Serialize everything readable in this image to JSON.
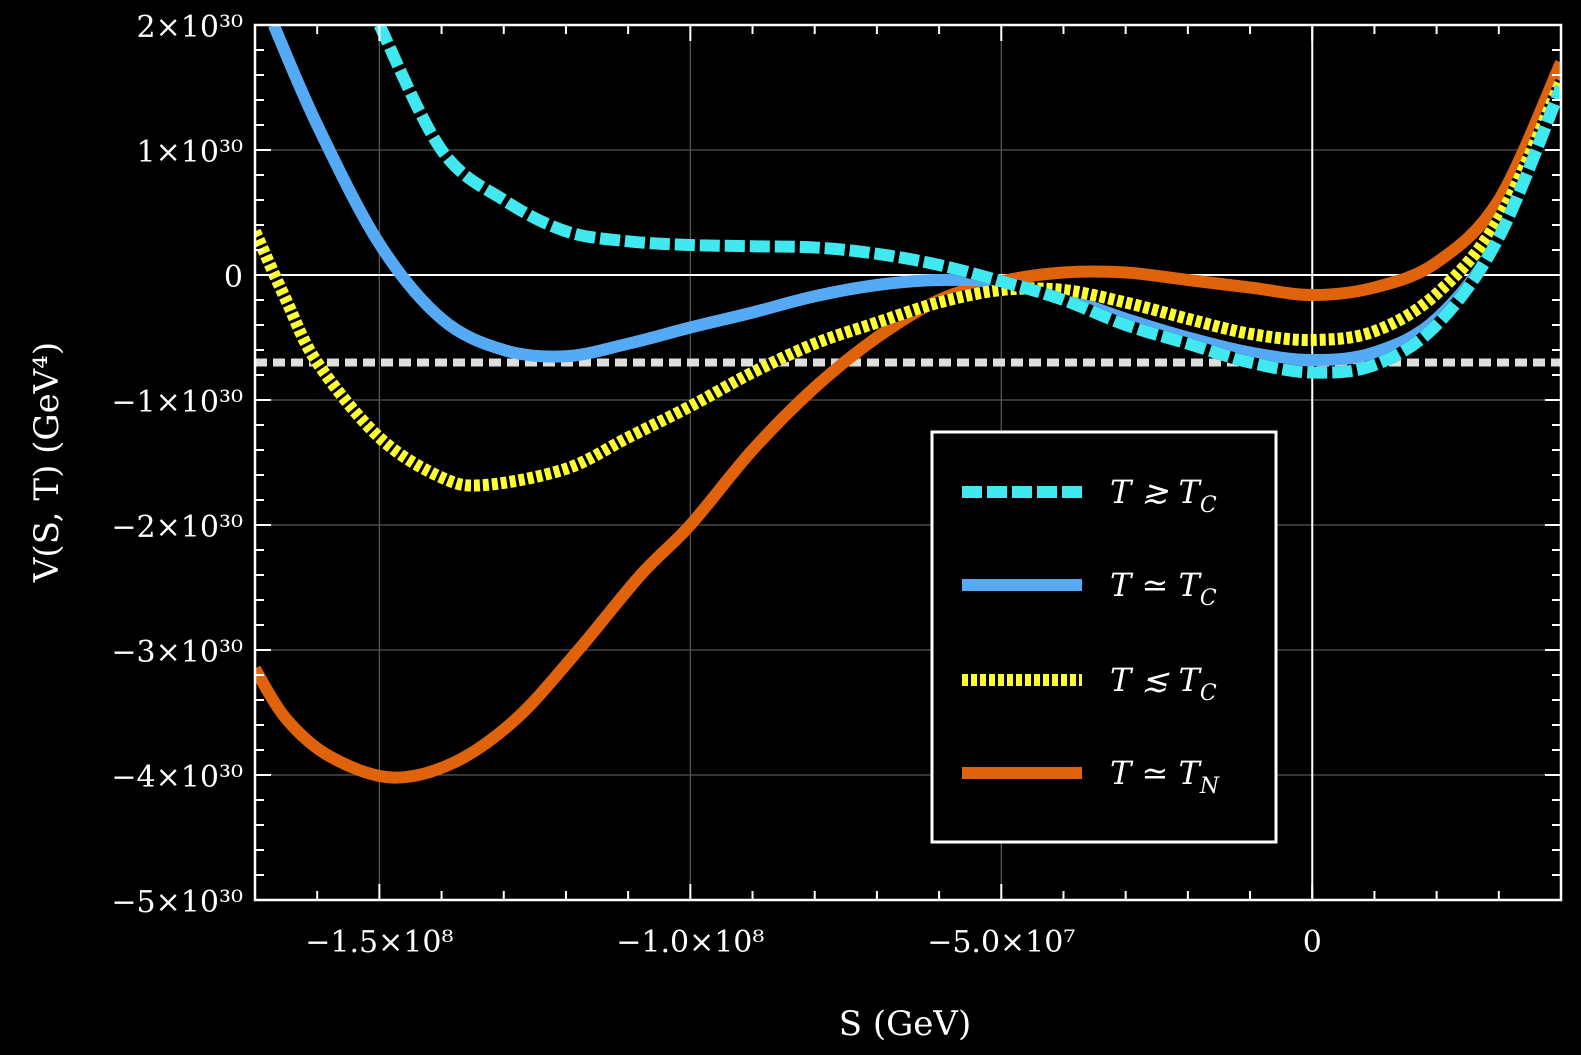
{
  "chart_data": {
    "type": "line",
    "xlabel": "S (GeV)",
    "ylabel": "V(S, T)  (GeV⁴)",
    "xlim": [
      -170000000,
      40000000
    ],
    "ylim": [
      -5e+30,
      2e+30
    ],
    "grid": true,
    "legend_position": "center-right",
    "x_ticks": [
      {
        "value": -150000000,
        "label": "−1.5×10⁸"
      },
      {
        "value": -100000000,
        "label": "−1.0×10⁸"
      },
      {
        "value": -50000000,
        "label": "−5.0×10⁷"
      },
      {
        "value": 0,
        "label": "0"
      }
    ],
    "y_ticks": [
      {
        "value": 2e+30,
        "label": "2×10³⁰"
      },
      {
        "value": 1e+30,
        "label": "1×10³⁰"
      },
      {
        "value": 0,
        "label": "0"
      },
      {
        "value": -1e+30,
        "label": "−1×10³⁰"
      },
      {
        "value": -2e+30,
        "label": "−2×10³⁰"
      },
      {
        "value": -3e+30,
        "label": "−3×10³⁰"
      },
      {
        "value": -4e+30,
        "label": "−4×10³⁰"
      },
      {
        "value": -5e+30,
        "label": "−5×10³⁰"
      }
    ],
    "reference_line": {
      "y": -7e+29,
      "color": "#dddddd"
    },
    "series": [
      {
        "name": "T ≳ T_C",
        "label_main": "T ≳ T",
        "label_sub": "C",
        "color": "#40e8f0",
        "style": "dashed",
        "points": [
          [
            -150000000,
            2e+30
          ],
          [
            -140000000,
            1e+30
          ],
          [
            -130000000,
            6e+29
          ],
          [
            -120000000,
            3.5e+29
          ],
          [
            -110000000,
            2.7e+29
          ],
          [
            -100000000,
            2.4e+29
          ],
          [
            -90000000,
            2.3e+29
          ],
          [
            -80000000,
            2.2e+29
          ],
          [
            -70000000,
            1.7e+29
          ],
          [
            -60000000,
            8e+28
          ],
          [
            -50000000,
            -5e+28
          ],
          [
            -40000000,
            -2e+29
          ],
          [
            -30000000,
            -4e+29
          ],
          [
            -20000000,
            -5.5e+29
          ],
          [
            -10000000,
            -7e+29
          ],
          [
            0,
            -7.8e+29
          ],
          [
            10000000,
            -7.2e+29
          ],
          [
            20000000,
            -4e+29
          ],
          [
            30000000,
            3e+29
          ],
          [
            40000000,
            1.5e+30
          ]
        ]
      },
      {
        "name": "T ≃ T_C",
        "label_main": "T ≃ T",
        "label_sub": "C",
        "color": "#55aaf5",
        "style": "solid",
        "points": [
          [
            -167000000,
            2e+30
          ],
          [
            -160000000,
            1.2e+30
          ],
          [
            -150000000,
            2.5e+29
          ],
          [
            -140000000,
            -3.5e+29
          ],
          [
            -130000000,
            -6e+29
          ],
          [
            -120000000,
            -6.5e+29
          ],
          [
            -110000000,
            -5.5e+29
          ],
          [
            -100000000,
            -4.2e+29
          ],
          [
            -90000000,
            -3e+29
          ],
          [
            -80000000,
            -1.7e+29
          ],
          [
            -70000000,
            -8e+28
          ],
          [
            -60000000,
            -4e+28
          ],
          [
            -50000000,
            -6e+28
          ],
          [
            -40000000,
            -1.8e+29
          ],
          [
            -30000000,
            -3.5e+29
          ],
          [
            -20000000,
            -5e+29
          ],
          [
            -10000000,
            -6.2e+29
          ],
          [
            0,
            -6.8e+29
          ],
          [
            10000000,
            -6.2e+29
          ],
          [
            20000000,
            -3.5e+29
          ],
          [
            30000000,
            3e+29
          ],
          [
            40000000,
            1.5e+30
          ]
        ]
      },
      {
        "name": "T ≲ T_C",
        "label_main": "T ≲ T",
        "label_sub": "C",
        "color": "#ffff30",
        "style": "dotted",
        "points": [
          [
            -170000000,
            3.5e+29
          ],
          [
            -165000000,
            -2e+29
          ],
          [
            -160000000,
            -7e+29
          ],
          [
            -150000000,
            -1.3e+30
          ],
          [
            -140000000,
            -1.62e+30
          ],
          [
            -133000000,
            -1.68e+30
          ],
          [
            -120000000,
            -1.55e+30
          ],
          [
            -110000000,
            -1.3e+30
          ],
          [
            -100000000,
            -1.05e+30
          ],
          [
            -90000000,
            -7.8e+29
          ],
          [
            -80000000,
            -5.5e+29
          ],
          [
            -70000000,
            -3.8e+29
          ],
          [
            -60000000,
            -2.2e+29
          ],
          [
            -50000000,
            -1.2e+29
          ],
          [
            -40000000,
            -1.2e+29
          ],
          [
            -30000000,
            -2.2e+29
          ],
          [
            -20000000,
            -3.5e+29
          ],
          [
            -10000000,
            -4.7e+29
          ],
          [
            0,
            -5.2e+29
          ],
          [
            10000000,
            -4.5e+29
          ],
          [
            20000000,
            -1.5e+29
          ],
          [
            30000000,
            4.5e+29
          ],
          [
            40000000,
            1.55e+30
          ]
        ]
      },
      {
        "name": "T ≃ T_N",
        "label_main": "T ≃ T",
        "label_sub": "N",
        "color": "#e0620a",
        "style": "solid",
        "points": [
          [
            -170000000,
            -3.15e+30
          ],
          [
            -165000000,
            -3.55e+30
          ],
          [
            -158000000,
            -3.85e+30
          ],
          [
            -148000000,
            -4.02e+30
          ],
          [
            -138000000,
            -3.9e+30
          ],
          [
            -128000000,
            -3.55e+30
          ],
          [
            -118000000,
            -3e+30
          ],
          [
            -108000000,
            -2.4e+30
          ],
          [
            -100000000,
            -2e+30
          ],
          [
            -90000000,
            -1.4e+30
          ],
          [
            -80000000,
            -9e+29
          ],
          [
            -70000000,
            -5e+29
          ],
          [
            -60000000,
            -2e+29
          ],
          [
            -50000000,
            -5e+28
          ],
          [
            -40000000,
            2e+28
          ],
          [
            -30000000,
            2e+28
          ],
          [
            -20000000,
            -4e+28
          ],
          [
            -10000000,
            -1e+29
          ],
          [
            0,
            -1.6e+29
          ],
          [
            10000000,
            -1e+29
          ],
          [
            20000000,
            1e+29
          ],
          [
            30000000,
            6e+29
          ],
          [
            40000000,
            1.7e+30
          ]
        ]
      }
    ]
  }
}
